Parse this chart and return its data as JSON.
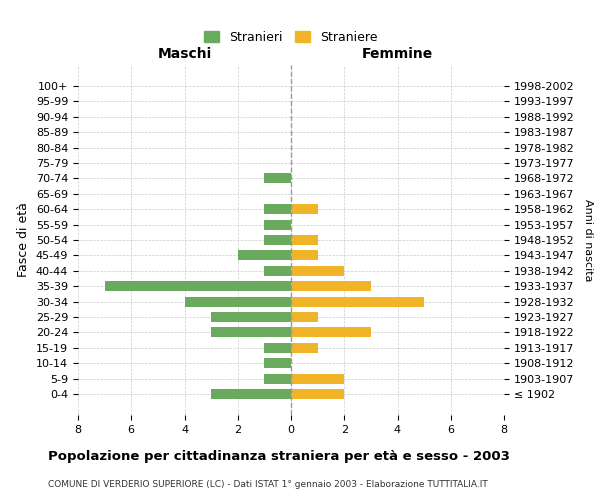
{
  "age_groups": [
    "100+",
    "95-99",
    "90-94",
    "85-89",
    "80-84",
    "75-79",
    "70-74",
    "65-69",
    "60-64",
    "55-59",
    "50-54",
    "45-49",
    "40-44",
    "35-39",
    "30-34",
    "25-29",
    "20-24",
    "15-19",
    "10-14",
    "5-9",
    "0-4"
  ],
  "birth_years": [
    "≤ 1902",
    "1903-1907",
    "1908-1912",
    "1913-1917",
    "1918-1922",
    "1923-1927",
    "1928-1932",
    "1933-1937",
    "1938-1942",
    "1943-1947",
    "1948-1952",
    "1953-1957",
    "1958-1962",
    "1963-1967",
    "1968-1972",
    "1973-1977",
    "1978-1982",
    "1983-1987",
    "1988-1992",
    "1993-1997",
    "1998-2002"
  ],
  "maschi": [
    0,
    0,
    0,
    0,
    0,
    0,
    1,
    0,
    1,
    1,
    1,
    2,
    1,
    7,
    4,
    3,
    3,
    1,
    1,
    1,
    3
  ],
  "femmine": [
    0,
    0,
    0,
    0,
    0,
    0,
    0,
    0,
    1,
    0,
    1,
    1,
    2,
    3,
    5,
    1,
    3,
    1,
    0,
    2,
    2
  ],
  "maschi_color": "#6aaa5e",
  "femmine_color": "#f0b429",
  "background_color": "#ffffff",
  "grid_color": "#cccccc",
  "title": "Popolazione per cittadinanza straniera per età e sesso - 2003",
  "subtitle": "COMUNE DI VERDERIO SUPERIORE (LC) - Dati ISTAT 1° gennaio 2003 - Elaborazione TUTTITALIA.IT",
  "ylabel_left": "Fasce di età",
  "ylabel_right": "Anni di nascita",
  "xlabel_maschi": "Maschi",
  "xlabel_femmine": "Femmine",
  "legend_maschi": "Stranieri",
  "legend_femmine": "Straniere",
  "xlim": 8,
  "figsize": [
    6.0,
    5.0
  ],
  "dpi": 100
}
